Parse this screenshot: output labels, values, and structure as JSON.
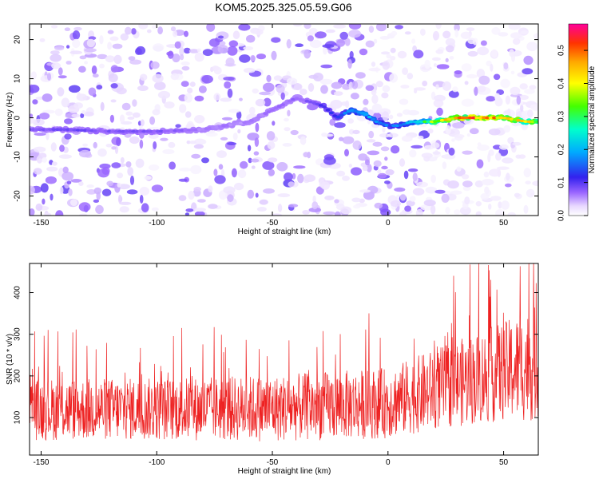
{
  "title": "KOM5.2025.325.05.59.G06",
  "chart_data": [
    {
      "type": "heatmap",
      "xlabel": "Height of straight line (km)",
      "ylabel": "Frequency (Hz)",
      "xlim": [
        -155,
        65
      ],
      "ylim": [
        -25,
        24
      ],
      "xticks": [
        -150,
        -100,
        -50,
        0,
        50
      ],
      "yticks": [
        -20,
        -10,
        0,
        10,
        20
      ],
      "colorbar": {
        "label": "Normalized spectral amplitude",
        "range": [
          0,
          0.58
        ],
        "ticks": [
          0.0,
          0.1,
          0.2,
          0.3,
          0.4,
          0.5
        ]
      },
      "ridge": {
        "x": [
          -155,
          -140,
          -120,
          -100,
          -80,
          -60,
          -50,
          -40,
          -33,
          -28,
          -22,
          -16,
          -10,
          -5,
          0,
          5,
          10,
          20,
          30,
          40,
          50,
          60,
          65
        ],
        "frequency": [
          -3,
          -3,
          -3.5,
          -3.5,
          -3,
          -1,
          2,
          5,
          4,
          3,
          0,
          2,
          1,
          -1,
          -2,
          -2,
          -1,
          -1,
          0,
          0,
          0,
          -1,
          -1
        ],
        "amplitude": [
          0.08,
          0.09,
          0.08,
          0.08,
          0.06,
          0.06,
          0.06,
          0.07,
          0.08,
          0.12,
          0.12,
          0.18,
          0.2,
          0.18,
          0.15,
          0.16,
          0.2,
          0.35,
          0.45,
          0.48,
          0.42,
          0.4,
          0.35
        ]
      }
    },
    {
      "type": "line",
      "xlabel": "Height of straight line (km)",
      "ylabel": "SNR (10 * v/v)",
      "xlim": [
        -155,
        65
      ],
      "ylim": [
        10,
        470
      ],
      "xticks": [
        -150,
        -100,
        -50,
        0,
        50
      ],
      "yticks": [
        100,
        200,
        300,
        400
      ],
      "series": [
        {
          "name": "SNR",
          "color": "#ee2222",
          "envelope_x": [
            -155,
            -100,
            -50,
            0,
            25,
            50,
            65
          ],
          "envelope_mean": [
            120,
            120,
            122,
            135,
            175,
            210,
            230
          ],
          "envelope_spread": [
            75,
            75,
            80,
            85,
            100,
            120,
            140
          ]
        }
      ]
    }
  ]
}
